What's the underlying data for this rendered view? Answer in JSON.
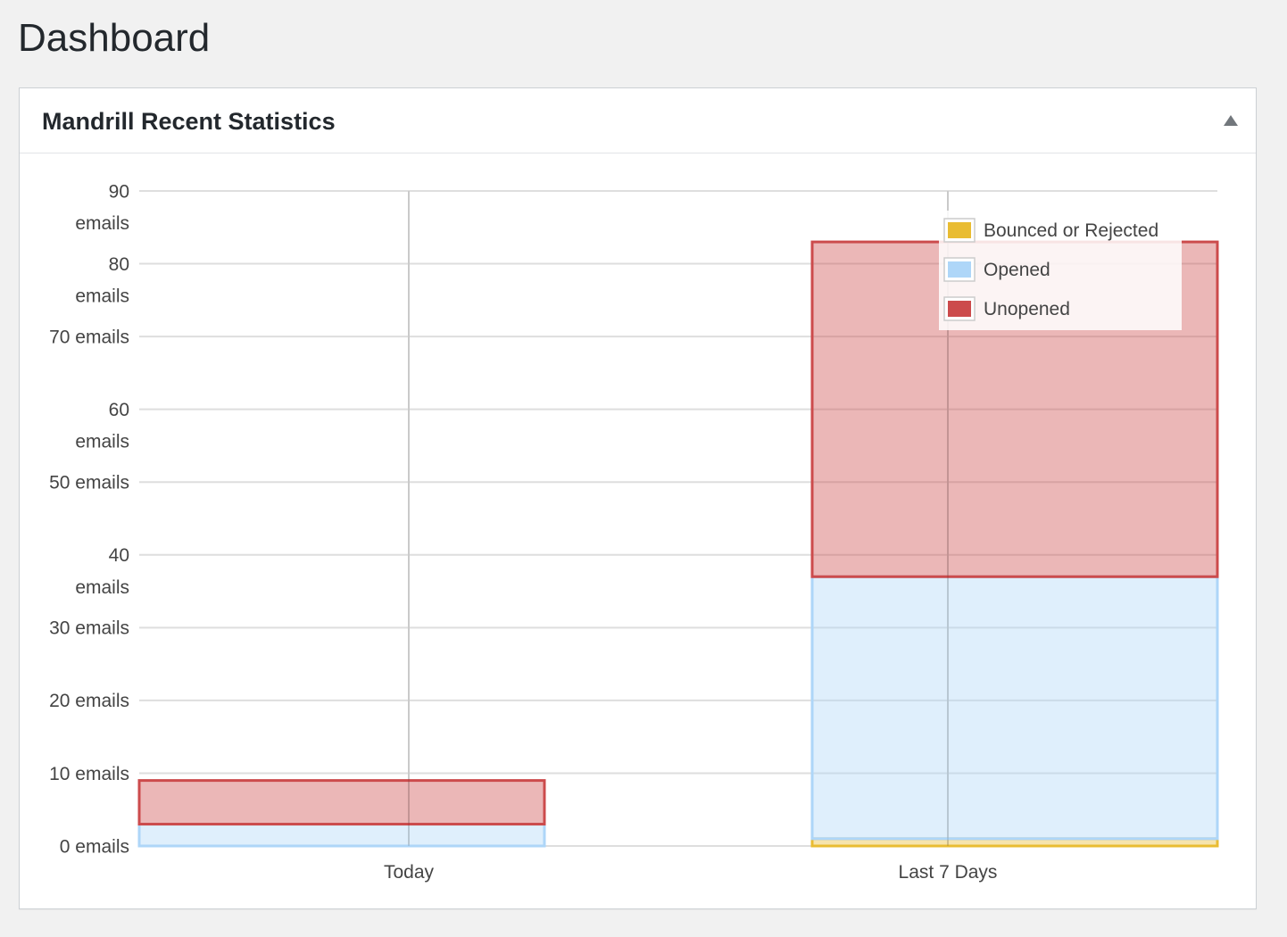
{
  "page": {
    "title": "Dashboard"
  },
  "widget": {
    "title": "Mandrill Recent Statistics",
    "toggle_icon": "collapse-arrow-up-icon"
  },
  "chart_data": {
    "type": "bar",
    "stacked": true,
    "categories": [
      "Today",
      "Last 7 Days"
    ],
    "series": [
      {
        "name": "Bounced or Rejected",
        "values": [
          0,
          1
        ],
        "color": "#e9bc32"
      },
      {
        "name": "Opened",
        "values": [
          3,
          36
        ],
        "color": "#aed6f8"
      },
      {
        "name": "Unopened",
        "values": [
          6,
          46
        ],
        "color": "#cc4b4c"
      }
    ],
    "y_ticks": [
      {
        "value": 0,
        "label": "0 emails"
      },
      {
        "value": 10,
        "label": "10 emails"
      },
      {
        "value": 20,
        "label": "20 emails"
      },
      {
        "value": 30,
        "label": "30 emails"
      },
      {
        "value": 40,
        "label": "40 emails"
      },
      {
        "value": 50,
        "label": "50 emails"
      },
      {
        "value": 60,
        "label": "60 emails"
      },
      {
        "value": 70,
        "label": "70 emails"
      },
      {
        "value": 80,
        "label": "80 emails"
      },
      {
        "value": 90,
        "label": "90 emails"
      }
    ],
    "ylim": [
      0,
      90
    ],
    "grid": true,
    "legend_position": "top-right"
  }
}
